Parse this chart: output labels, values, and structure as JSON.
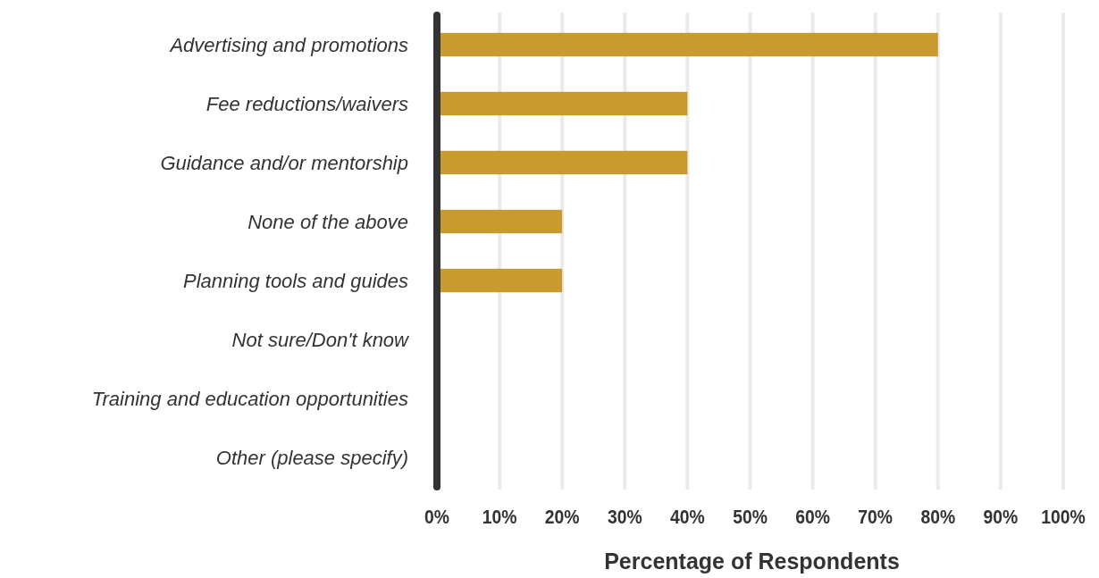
{
  "chart_data": {
    "type": "bar",
    "orientation": "horizontal",
    "xlabel": "Percentage of Respondents",
    "categories": [
      "Advertising and promotions",
      "Fee reductions/waivers",
      "Guidance and/or mentorship",
      "None of the above",
      "Planning tools and guides",
      "Not sure/Don't know",
      "Training and education opportunities",
      "Other (please specify)"
    ],
    "values": [
      80,
      40,
      40,
      20,
      20,
      0,
      0,
      0
    ],
    "color": "#c99a2e",
    "xlim": [
      0,
      100
    ],
    "xticks": [
      {
        "value": 0,
        "label": "0%"
      },
      {
        "value": 10,
        "label": "10%"
      },
      {
        "value": 20,
        "label": "20%"
      },
      {
        "value": 30,
        "label": "30%"
      },
      {
        "value": 40,
        "label": "40%"
      },
      {
        "value": 50,
        "label": "50%"
      },
      {
        "value": 60,
        "label": "60%"
      },
      {
        "value": 70,
        "label": "70%"
      },
      {
        "value": 80,
        "label": "80%"
      },
      {
        "value": 90,
        "label": "90%"
      },
      {
        "value": 100,
        "label": "100%"
      }
    ],
    "grid": "x"
  }
}
